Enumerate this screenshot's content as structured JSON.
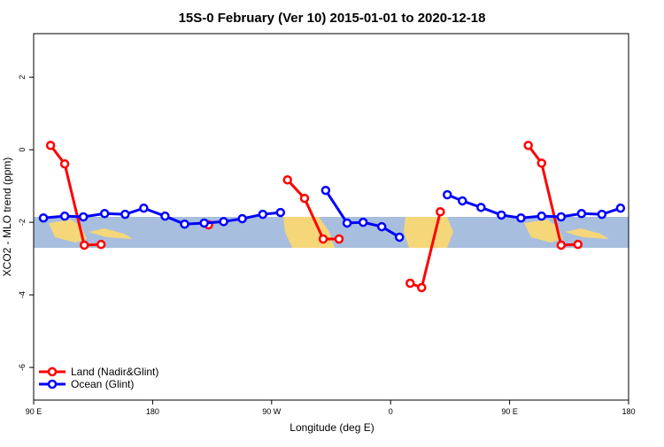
{
  "chart_data": {
    "type": "line",
    "title": "15S-0 February (Ver 10)   2015-01-01 to 2020-12-18",
    "x_label": "Longitude (deg E)",
    "y_label": "XCO2 - MLO trend (ppm)",
    "xlim": [
      90,
      540
    ],
    "ylim": [
      -6.9,
      3.2
    ],
    "xticks": [
      {
        "value": 90,
        "label": "90 E"
      },
      180,
      {
        "value": 270,
        "label": "90 W"
      },
      {
        "value": 360,
        "label": "0"
      },
      {
        "value": 450,
        "label": "90 E"
      },
      {
        "value": 540,
        "label": "180"
      }
    ],
    "yticks": [
      -6,
      -4,
      -2,
      0,
      2
    ],
    "legend": "bottom-left",
    "series": [
      {
        "name": "Land (Nadir&Glint)",
        "color": "#ff0000",
        "x": [
          102.8,
          113.5,
          128.3,
          141,
          null,
          222.3,
          null,
          282,
          294.9,
          309,
          321,
          null,
          374.8,
          383.5,
          397.6,
          null,
          464.1,
          474.2,
          489,
          501.7
        ],
        "values": [
          0.12,
          -0.39,
          -2.63,
          -2.61,
          null,
          -2.07,
          null,
          -0.83,
          -1.34,
          -2.46,
          -2.46,
          null,
          -3.68,
          -3.8,
          -1.71,
          null,
          0.12,
          -0.37,
          -2.63,
          -2.61
        ]
      },
      {
        "name": "Ocean (Glint)",
        "color": "#0000ff",
        "x": [
          97.4,
          113.5,
          127.6,
          143.7,
          159.2,
          173.3,
          189.4,
          204.2,
          219,
          233.7,
          247.8,
          263.3,
          276.7,
          null,
          310.9,
          327.1,
          339.2,
          353.3,
          366.7,
          null,
          402.9,
          414.3,
          428.4,
          443.8,
          458.6,
          474.2,
          489,
          504.4,
          519.8,
          533.9
        ],
        "values": [
          -1.88,
          -1.83,
          -1.85,
          -1.76,
          -1.78,
          -1.61,
          -1.83,
          -2.05,
          -2.02,
          -1.98,
          -1.9,
          -1.78,
          -1.73,
          null,
          -1.12,
          -2.02,
          -2.0,
          -2.12,
          -2.41,
          null,
          -1.24,
          -1.41,
          -1.59,
          -1.8,
          -1.88,
          -1.83,
          -1.85,
          -1.76,
          -1.78,
          -1.61
        ]
      }
    ]
  }
}
